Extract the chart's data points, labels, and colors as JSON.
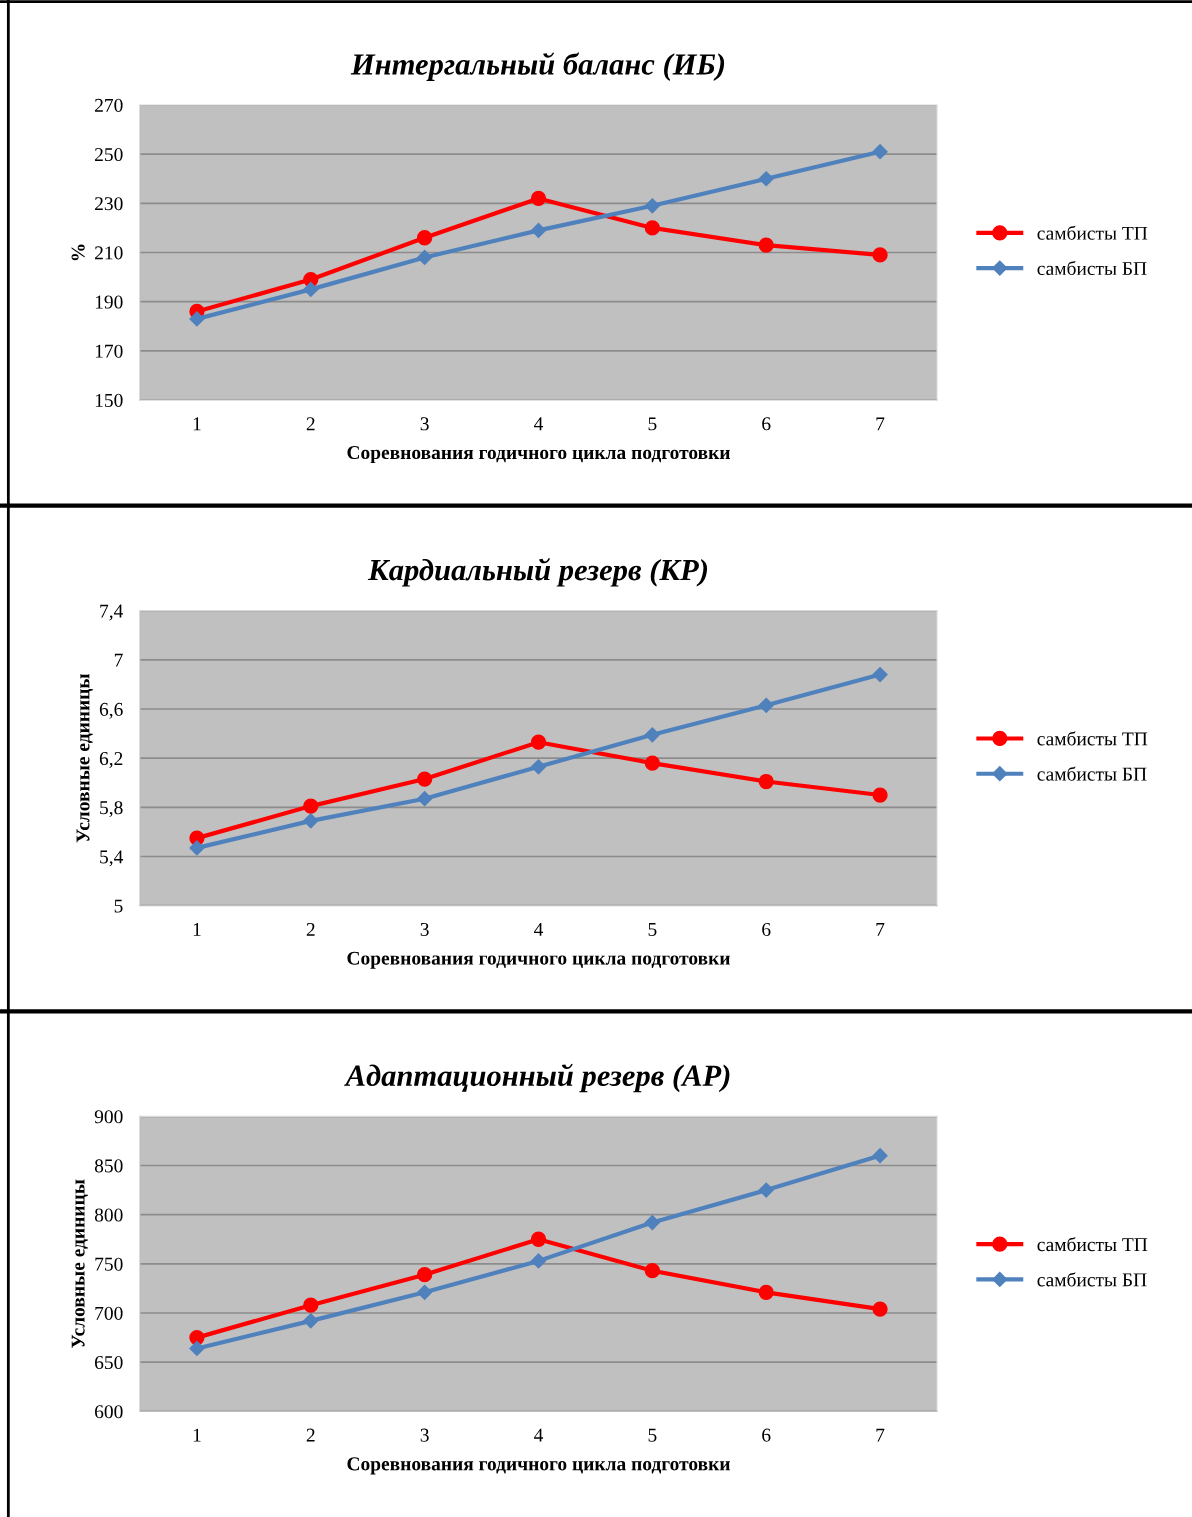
{
  "chart_data": [
    {
      "type": "line",
      "title": "Интергальный баланс (ИБ)",
      "xlabel": "Соревнования годичного цикла подготовки",
      "ylabel": "%",
      "categories": [
        "1",
        "2",
        "3",
        "4",
        "5",
        "6",
        "7"
      ],
      "ylim": [
        150,
        270
      ],
      "yticks": [
        150,
        170,
        190,
        210,
        230,
        250,
        270
      ],
      "grid": "y",
      "legend": "right",
      "series": [
        {
          "name": "самбисты ТП",
          "color": "#ff0000",
          "marker": "circle",
          "values": [
            186,
            199,
            216,
            232,
            220,
            213,
            209
          ]
        },
        {
          "name": "самбисты БП",
          "color": "#4f81bd",
          "marker": "diamond",
          "values": [
            183,
            195,
            208,
            219,
            229,
            240,
            251
          ]
        }
      ]
    },
    {
      "type": "line",
      "title": "Кардиальный резерв (КР)",
      "xlabel": "Соревнования годичного цикла подготовки",
      "ylabel": "Условные единицы",
      "categories": [
        "1",
        "2",
        "3",
        "4",
        "5",
        "6",
        "7"
      ],
      "ylim": [
        5,
        7.4
      ],
      "yticks": [
        5,
        {
          "value": 5.4,
          "label": "5,4"
        },
        {
          "value": 5.8,
          "label": "5,8"
        },
        {
          "value": 6.2,
          "label": "6,2"
        },
        {
          "value": 6.6,
          "label": "6,6"
        },
        7,
        {
          "value": 7.4,
          "label": "7,4"
        }
      ],
      "grid": "y",
      "legend": "right",
      "series": [
        {
          "name": "самбисты ТП",
          "color": "#ff0000",
          "marker": "circle",
          "values": [
            5.55,
            5.81,
            6.03,
            6.33,
            6.16,
            6.01,
            5.9
          ]
        },
        {
          "name": "самбисты БП",
          "color": "#4f81bd",
          "marker": "diamond",
          "values": [
            5.47,
            5.69,
            5.87,
            6.13,
            6.39,
            6.63,
            6.88
          ]
        }
      ]
    },
    {
      "type": "line",
      "title": "Адаптационный резерв (АР)",
      "xlabel": "Соревнования годичного цикла подготовки",
      "ylabel": "Условные единицы",
      "categories": [
        "1",
        "2",
        "3",
        "4",
        "5",
        "6",
        "7"
      ],
      "ylim": [
        600,
        900
      ],
      "yticks": [
        600,
        650,
        700,
        750,
        800,
        850,
        900
      ],
      "grid": "y",
      "legend": "right",
      "series": [
        {
          "name": "самбисты ТП",
          "color": "#ff0000",
          "marker": "circle",
          "values": [
            675,
            708,
            739,
            775,
            743,
            721,
            704
          ]
        },
        {
          "name": "самбисты БП",
          "color": "#4f81bd",
          "marker": "diamond",
          "values": [
            664,
            692,
            721,
            753,
            792,
            825,
            860
          ]
        }
      ]
    }
  ]
}
